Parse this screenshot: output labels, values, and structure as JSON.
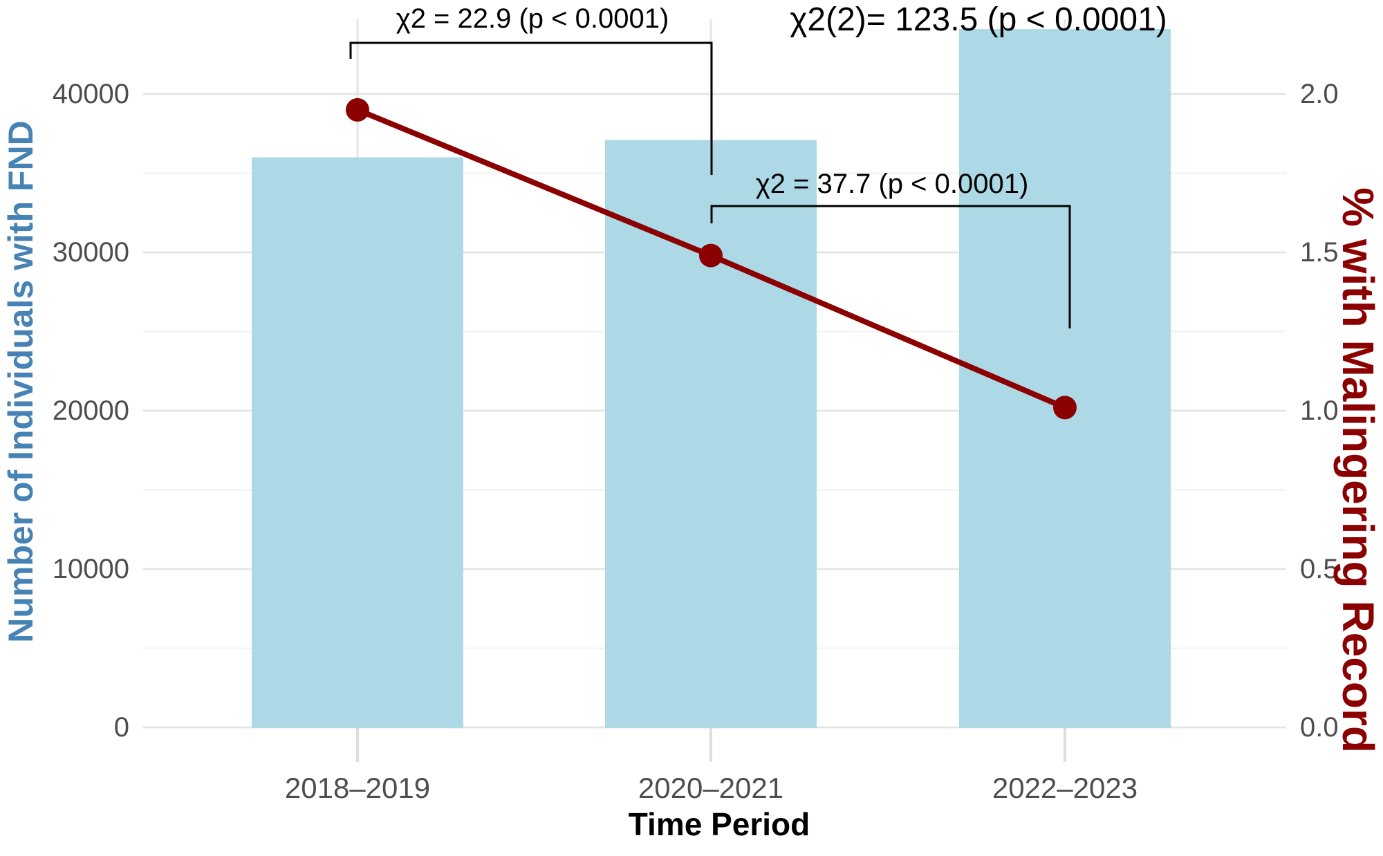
{
  "chart_data": {
    "type": "bar+line dual-axis combo",
    "categories": [
      "2018–2019",
      "2020–2021",
      "2022–2023"
    ],
    "series": [
      {
        "name": "Number of Individuals with FND",
        "type": "bar",
        "axis": "left",
        "color": "#ADD8E6",
        "values": [
          36000,
          37100,
          44100
        ]
      },
      {
        "name": "% with Malingering Record",
        "type": "line",
        "axis": "right",
        "color": "#8B0000",
        "values": [
          1.95,
          1.49,
          1.01
        ]
      }
    ],
    "left_axis": {
      "label": "Number of Individuals with FND",
      "color": "#4682B4",
      "tick_labels": [
        "0",
        "10000",
        "20000",
        "30000",
        "40000"
      ],
      "tick_values": [
        0,
        10000,
        20000,
        30000,
        40000
      ],
      "max": 40000
    },
    "right_axis": {
      "label": "% with Malingering Record",
      "color": "#8B0000",
      "tick_labels": [
        "0.0",
        "0.5",
        "1.0",
        "1.5",
        "2.0"
      ],
      "tick_values": [
        0,
        0.5,
        1.0,
        1.5,
        2.0
      ],
      "max": 2.0
    },
    "x_axis": {
      "label": "Time Period"
    },
    "grid": true,
    "legend": "none",
    "annotations": [
      {
        "text": "χ2 = 22.9 (p < 0.0001)",
        "between": [
          "2018–2019",
          "2020–2021"
        ]
      },
      {
        "text": "χ2 = 37.7 (p < 0.0001)",
        "between": [
          "2020–2021",
          "2022–2023"
        ]
      },
      {
        "text": "χ2(2)= 123.5 (p < 0.0001)",
        "scope": "overall"
      }
    ],
    "style_colors": {
      "grid_major": "#E5E5E5",
      "grid_minor": "#F0F0F0",
      "tick_label": "#4d4d4d",
      "annotation": "#000000",
      "background": "#ffffff"
    }
  }
}
